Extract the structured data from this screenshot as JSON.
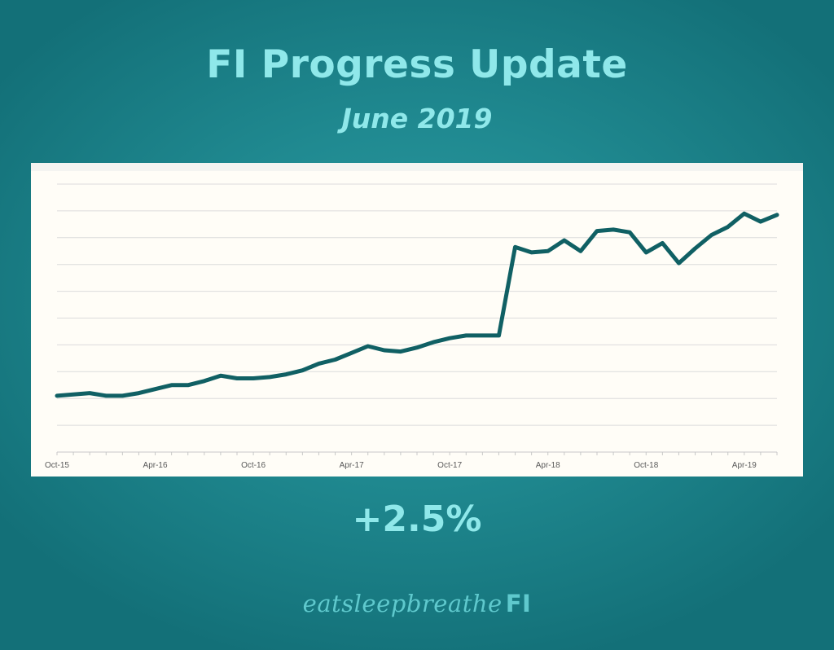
{
  "title": "FI Progress Update",
  "subtitle": "June 2019",
  "change_label": "+2.5%",
  "brand": {
    "main": "eatsleepbreathe",
    "suffix": "FI"
  },
  "colors": {
    "line": "#106064",
    "grid": "#dcdcdc",
    "text_accent": "#8fe8ea"
  },
  "chart_data": {
    "type": "line",
    "title": "",
    "xlabel": "",
    "ylabel": "",
    "ylim": [
      0,
      10
    ],
    "grid": true,
    "legend": "none",
    "tick_labels": [
      "Oct-15",
      "Apr-16",
      "Oct-16",
      "Apr-17",
      "Oct-17",
      "Apr-18",
      "Oct-18",
      "Apr-19"
    ],
    "x": [
      "Oct-15",
      "Nov-15",
      "Dec-15",
      "Jan-16",
      "Feb-16",
      "Mar-16",
      "Apr-16",
      "May-16",
      "Jun-16",
      "Jul-16",
      "Aug-16",
      "Sep-16",
      "Oct-16",
      "Nov-16",
      "Dec-16",
      "Jan-17",
      "Feb-17",
      "Mar-17",
      "Apr-17",
      "May-17",
      "Jun-17",
      "Jul-17",
      "Aug-17",
      "Sep-17",
      "Oct-17",
      "Nov-17",
      "Dec-17",
      "Jan-18",
      "Feb-18",
      "Mar-18",
      "Apr-18",
      "May-18",
      "Jun-18",
      "Jul-18",
      "Aug-18",
      "Sep-18",
      "Oct-18",
      "Nov-18",
      "Dec-18",
      "Jan-19",
      "Feb-19",
      "Mar-19",
      "Apr-19",
      "May-19",
      "Jun-19"
    ],
    "series": [
      {
        "values": [
          2.1,
          2.15,
          2.2,
          2.1,
          2.1,
          2.2,
          2.35,
          2.5,
          2.5,
          2.65,
          2.85,
          2.75,
          2.75,
          2.8,
          2.9,
          3.05,
          3.3,
          3.45,
          3.7,
          3.95,
          3.8,
          3.75,
          3.9,
          4.1,
          4.25,
          4.35,
          4.35,
          4.35,
          7.65,
          7.45,
          7.5,
          7.9,
          7.5,
          8.25,
          8.3,
          8.2,
          7.45,
          7.8,
          7.05,
          7.6,
          8.1,
          8.4,
          8.9,
          8.6,
          8.85
        ]
      }
    ]
  }
}
